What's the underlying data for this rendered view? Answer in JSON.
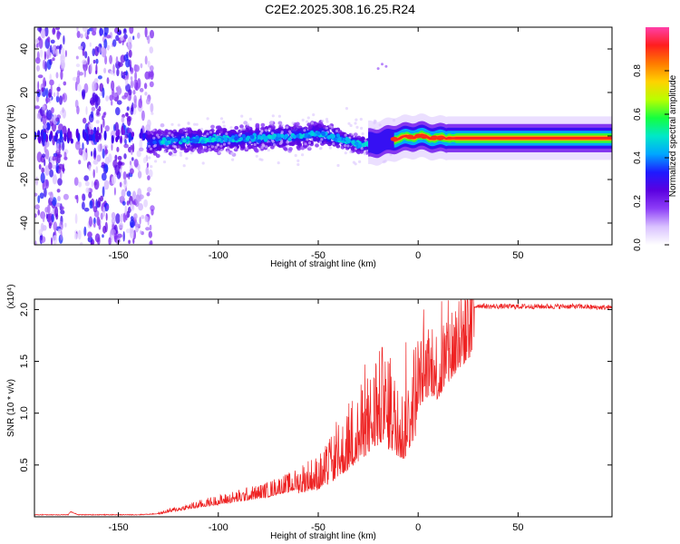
{
  "title": "C2E2.2025.308.16.25.R24",
  "chart_data": [
    {
      "type": "heatmap",
      "title": "C2E2.2025.308.16.25.R24",
      "xlabel": "Height of straight line (km)",
      "ylabel": "Frequency (Hz)",
      "xlim": [
        -192,
        97
      ],
      "ylim": [
        -50,
        50
      ],
      "xticks": [
        -150,
        -100,
        -50,
        0,
        50
      ],
      "xtick_labels": [
        "-150",
        "-100",
        "-50",
        "0",
        "50"
      ],
      "yticks": [
        -40,
        -20,
        0,
        20,
        40
      ],
      "ytick_labels": [
        "-40",
        "-20",
        "0",
        "20",
        "40"
      ],
      "colorbar": {
        "label": "Normalized spectral amplitude",
        "range": [
          0.0,
          1.0
        ],
        "ticks": [
          0.0,
          0.2,
          0.4,
          0.6,
          0.8
        ],
        "tick_labels": [
          "0.0",
          "0.2",
          "0.4",
          "0.6",
          "0.8"
        ],
        "colormap": [
          "#ffffff",
          "#d9c2ff",
          "#8d3ef7",
          "#5b00e0",
          "#1e1aff",
          "#00a6ff",
          "#00e8c8",
          "#14ff40",
          "#b8ff00",
          "#ffd200",
          "#ff7a00",
          "#ff1e1e",
          "#ff3fa8"
        ]
      },
      "band_center_hz": {
        "x": [
          -135,
          -120,
          -100,
          -80,
          -60,
          -50,
          -40,
          -30,
          -20,
          -10,
          0,
          10,
          20,
          40,
          60,
          80,
          97
        ],
        "y": [
          -3,
          -2,
          -1.5,
          -1,
          0,
          1,
          -1,
          -4,
          -3,
          -1,
          0,
          -1,
          -1,
          -1,
          -1,
          -1,
          -1
        ]
      },
      "scattered_noise_region_km": [
        -192,
        -133
      ]
    },
    {
      "type": "line",
      "xlabel": "Height of straight line (km)",
      "ylabel": "SNR (10 * v/v)",
      "scale_label": "(x10⁴)",
      "xlim": [
        -192,
        97
      ],
      "ylim": [
        0,
        2.1
      ],
      "xticks": [
        -150,
        -100,
        -50,
        0,
        50
      ],
      "xtick_labels": [
        "-150",
        "-100",
        "-50",
        "0",
        "50"
      ],
      "yticks": [
        0.5,
        1.0,
        1.5,
        2.0
      ],
      "ytick_labels": [
        "0.5",
        "1.0",
        "1.5",
        "2.0"
      ],
      "series": [
        {
          "name": "SNR",
          "color": "#ee2222",
          "x": [
            -192,
            -180,
            -175,
            -174,
            -170,
            -160,
            -150,
            -140,
            -130,
            -125,
            -120,
            -115,
            -110,
            -105,
            -100,
            -95,
            -90,
            -85,
            -80,
            -75,
            -70,
            -65,
            -60,
            -55,
            -50,
            -45,
            -40,
            -35,
            -30,
            -25,
            -20,
            -17,
            -15,
            -12,
            -10,
            -7,
            -5,
            -2,
            0,
            3,
            5,
            8,
            10,
            12,
            15,
            18,
            20,
            22,
            25,
            27,
            30,
            35,
            40,
            50,
            60,
            70,
            80,
            90,
            97
          ],
          "y": [
            0.02,
            0.02,
            0.02,
            0.05,
            0.02,
            0.02,
            0.02,
            0.02,
            0.03,
            0.06,
            0.08,
            0.1,
            0.12,
            0.14,
            0.16,
            0.18,
            0.2,
            0.22,
            0.24,
            0.26,
            0.3,
            0.32,
            0.36,
            0.4,
            0.42,
            0.5,
            0.62,
            0.72,
            0.85,
            0.98,
            1.1,
            1.18,
            1.05,
            1.0,
            0.92,
            0.88,
            1.02,
            1.2,
            1.35,
            1.45,
            1.5,
            1.5,
            1.45,
            1.55,
            1.65,
            1.75,
            1.8,
            1.88,
            1.95,
            2.02,
            2.04,
            2.03,
            2.03,
            2.03,
            2.03,
            2.03,
            2.03,
            2.02,
            2.02
          ]
        }
      ]
    }
  ]
}
